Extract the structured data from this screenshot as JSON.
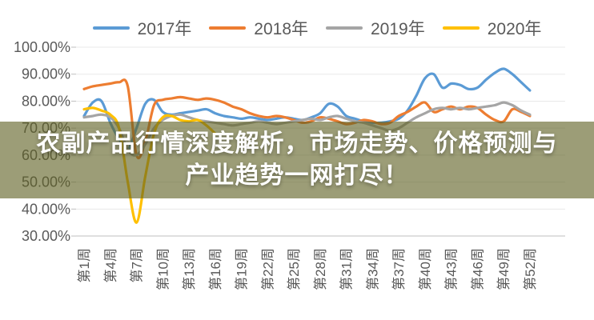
{
  "title_overlay": {
    "line1": "农副产品行情深度解析，市场走势、价格预测与",
    "line2": "产业趋势一网打尽！",
    "band_color": "rgba(96,97,35,0.62)",
    "text_color": "#ffffff"
  },
  "chart_data": {
    "type": "line",
    "title": "",
    "xlabel": "",
    "ylabel": "",
    "ylim": [
      30,
      100
    ],
    "grid": true,
    "legend_position": "top",
    "axis_color": "#595959",
    "grid_color": "#e8e8e8",
    "axis_line_color": "#bfbfbf",
    "y_tick_labels": [
      "100.00%",
      "90.00%",
      "80.00%",
      "70.00%",
      "60.00%",
      "50.00%",
      "40.00%",
      "30.00%"
    ],
    "x_tick_labels": [
      "第1周",
      "第4周",
      "第7周",
      "第10周",
      "第13周",
      "第16周",
      "第19周",
      "第22周",
      "第25周",
      "第28周",
      "第31周",
      "第34周",
      "第37周",
      "第40周",
      "第43周",
      "第46周",
      "第49周",
      "第52周"
    ],
    "x_tick_step_weeks": 3,
    "weeks_total": 52,
    "series": [
      {
        "name": "2017年",
        "color": "#5B9BD5",
        "values": [
          74.5,
          79.5,
          80,
          72,
          66,
          62,
          70,
          79,
          80.5,
          76,
          75,
          75.5,
          76,
          76.5,
          77,
          75.5,
          74.5,
          74,
          73.5,
          74,
          73.5,
          73,
          73.5,
          74,
          73.5,
          73,
          74,
          75.5,
          79,
          78,
          74.5,
          73.5,
          72.5,
          72,
          72,
          72.5,
          73.5,
          76.5,
          82,
          88.5,
          90,
          85,
          86.5,
          86,
          84.5,
          85,
          88,
          90.5,
          92,
          90,
          87,
          84
        ]
      },
      {
        "name": "2018年",
        "color": "#ED7D31",
        "values": [
          84.5,
          85.5,
          86,
          86.5,
          87,
          85.5,
          60,
          65,
          78.5,
          80.5,
          81,
          81.5,
          81,
          80.5,
          81,
          80.5,
          79.5,
          78,
          77,
          75.5,
          74.5,
          74,
          74.5,
          74,
          73,
          72,
          72.5,
          74,
          73.5,
          72.5,
          71.5,
          72,
          73,
          72.5,
          71.5,
          72,
          74.5,
          76,
          78,
          79.5,
          76,
          77,
          78,
          77,
          78,
          77.5,
          75,
          73,
          72.5,
          77,
          76,
          74.5
        ]
      },
      {
        "name": "2019年",
        "color": "#A5A5A5",
        "values": [
          74,
          74.5,
          75,
          74,
          70,
          62,
          60,
          64,
          70,
          73,
          74.5,
          75,
          74,
          73,
          72.5,
          72,
          71.5,
          71,
          71.5,
          72,
          72.5,
          72,
          71.5,
          72,
          72.5,
          73,
          73.5,
          73,
          74,
          74.5,
          73.5,
          72.5,
          72,
          71,
          70,
          69,
          70,
          72,
          74,
          75.5,
          77,
          77.5,
          77,
          77.5,
          77,
          77.5,
          78,
          78.5,
          79.5,
          78.5,
          76.5,
          75
        ]
      },
      {
        "name": "2020年",
        "color": "#FFC000",
        "values": [
          77,
          77.5,
          76.5,
          75,
          70,
          50,
          35,
          52,
          68,
          74,
          74.5,
          73,
          72.5,
          73,
          71,
          68
        ]
      }
    ]
  }
}
